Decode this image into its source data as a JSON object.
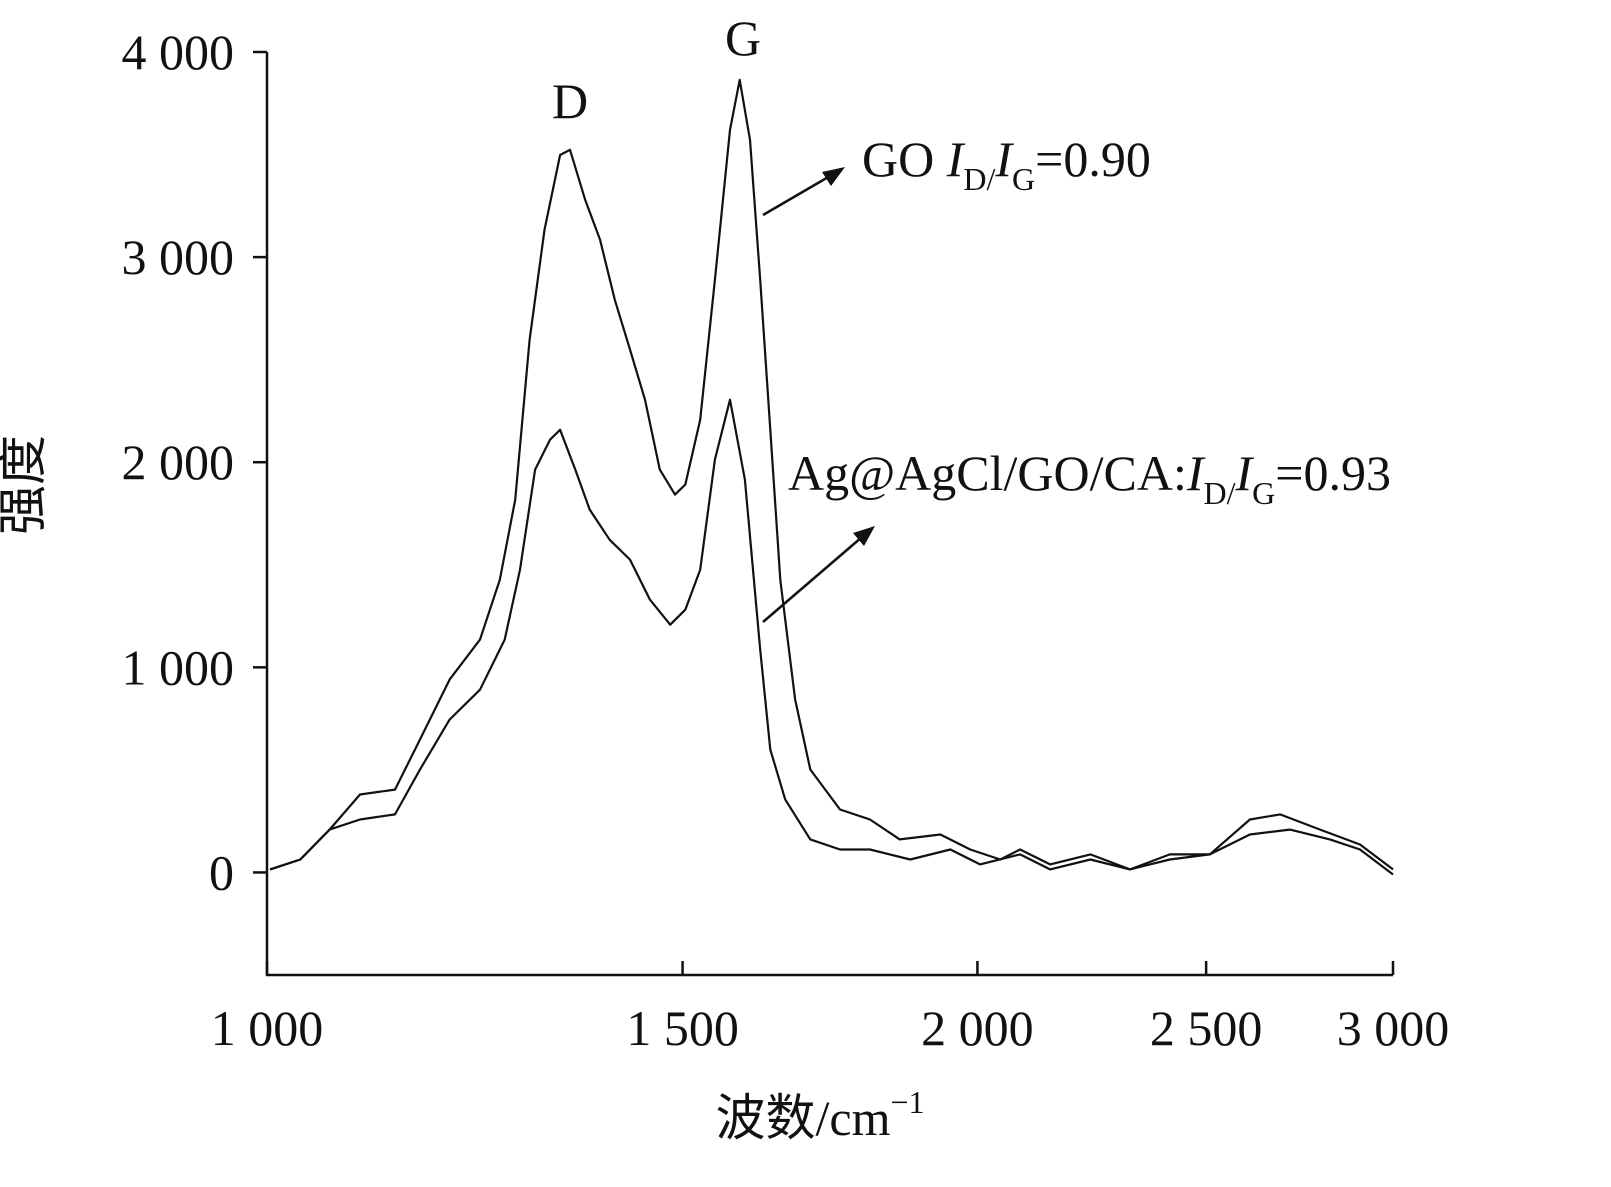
{
  "chart_data": {
    "type": "line",
    "xlabel": [
      "波数/cm",
      "−1"
    ],
    "ylabel": "强度",
    "xscale": "log",
    "xlim": [
      1000,
      3000
    ],
    "xticks": [
      {
        "value": 1000,
        "label": "1 000"
      },
      {
        "value": 1500,
        "label": "1 500"
      },
      {
        "value": 2000,
        "label": "2 000"
      },
      {
        "value": 2500,
        "label": "2 500"
      },
      {
        "value": 3000,
        "label": "3 000"
      }
    ],
    "ylim": [
      -500,
      4000
    ],
    "yticks": [
      {
        "value": 0,
        "label": "0"
      },
      {
        "value": 1000,
        "label": "1 000"
      },
      {
        "value": 2000,
        "label": "2 000"
      },
      {
        "value": 3000,
        "label": "3 000"
      },
      {
        "value": 4000,
        "label": "4 000"
      }
    ],
    "grid": false,
    "annotations": [
      {
        "text": "D"
      },
      {
        "text": "G"
      },
      {
        "parts": [
          "GO ",
          "I",
          "D/",
          "I",
          "G",
          "=0.90"
        ]
      },
      {
        "parts": [
          "Ag@AgCl/GO/CA:",
          "I",
          "D/",
          "I",
          "G",
          "=0.93"
        ]
      }
    ],
    "series": [
      {
        "name": "GO",
        "color": "#111111",
        "x": [
          1003,
          1033,
          1063,
          1095,
          1133,
          1161,
          1195,
          1231,
          1255,
          1274,
          1292,
          1311,
          1331,
          1344,
          1364,
          1384,
          1404,
          1425,
          1446,
          1467,
          1489,
          1504,
          1526,
          1548,
          1571,
          1586,
          1602,
          1618,
          1634,
          1650,
          1674,
          1699,
          1749,
          1801,
          1854,
          1929,
          1986,
          2045,
          2085,
          2147,
          2233,
          2321,
          2413,
          2509,
          2609,
          2687,
          2794,
          2905,
          3000
        ],
        "values": [
          15,
          63,
          209,
          380,
          404,
          648,
          940,
          1135,
          1427,
          1817,
          2597,
          3133,
          3498,
          3523,
          3279,
          3084,
          2792,
          2549,
          2305,
          1964,
          1842,
          1891,
          2207,
          2889,
          3620,
          3864,
          3572,
          2889,
          2158,
          1427,
          844,
          502,
          307,
          258,
          161,
          185,
          112,
          63,
          112,
          39,
          88,
          15,
          88,
          88,
          258,
          283,
          209,
          136,
          15
        ]
      },
      {
        "name": "Ag@AgCl/GO/CA",
        "color": "#111111",
        "x": [
          1003,
          1033,
          1063,
          1095,
          1133,
          1161,
          1195,
          1231,
          1261,
          1280,
          1299,
          1318,
          1331,
          1351,
          1370,
          1397,
          1425,
          1453,
          1482,
          1504,
          1526,
          1548,
          1571,
          1594,
          1618,
          1634,
          1658,
          1699,
          1749,
          1801,
          1873,
          1948,
          2005,
          2085,
          2147,
          2233,
          2321,
          2413,
          2509,
          2609,
          2713,
          2821,
          2905,
          3000
        ],
        "values": [
          15,
          63,
          209,
          258,
          283,
          502,
          745,
          891,
          1135,
          1476,
          1964,
          2110,
          2158,
          1964,
          1769,
          1622,
          1525,
          1330,
          1208,
          1281,
          1476,
          2013,
          2305,
          1915,
          1086,
          599,
          356,
          161,
          112,
          112,
          63,
          112,
          39,
          88,
          15,
          63,
          15,
          63,
          88,
          185,
          209,
          161,
          112,
          -10
        ]
      }
    ]
  }
}
